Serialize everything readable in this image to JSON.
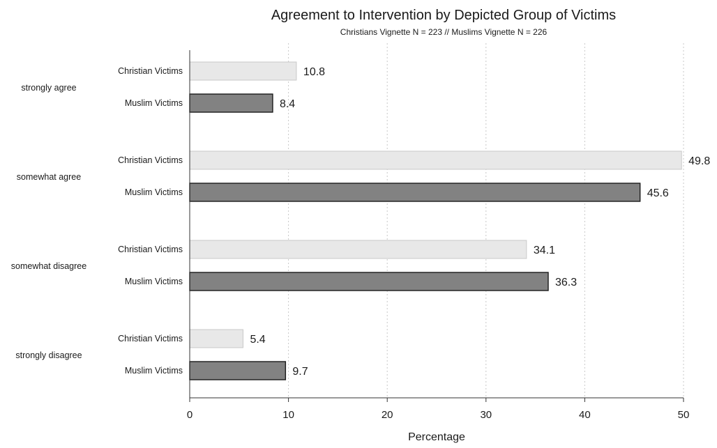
{
  "chart_data": {
    "type": "bar",
    "orientation": "horizontal",
    "title": "Agreement to Intervention by Depicted Group of Victims",
    "subtitle": "Christians Vignette N = 223 // Muslims Vignette N = 226",
    "xlabel": "Percentage",
    "xlim": [
      0,
      50
    ],
    "xticks": [
      0,
      10,
      20,
      30,
      40,
      50
    ],
    "grid": true,
    "categories": [
      "strongly agree",
      "somewhat agree",
      "somewhat disagree",
      "strongly disagree"
    ],
    "series": [
      {
        "name": "Christian Victims",
        "values": [
          10.8,
          49.8,
          34.1,
          5.4
        ],
        "value_labels": [
          "10.8",
          "49.8",
          "34.1",
          "5.4"
        ],
        "color": "#e8e8e8"
      },
      {
        "name": "Muslim Victims",
        "values": [
          8.4,
          45.6,
          36.3,
          9.7
        ],
        "value_labels": [
          "8.4",
          "45.6",
          "36.3",
          "9.7"
        ],
        "color": "#828282"
      }
    ]
  }
}
